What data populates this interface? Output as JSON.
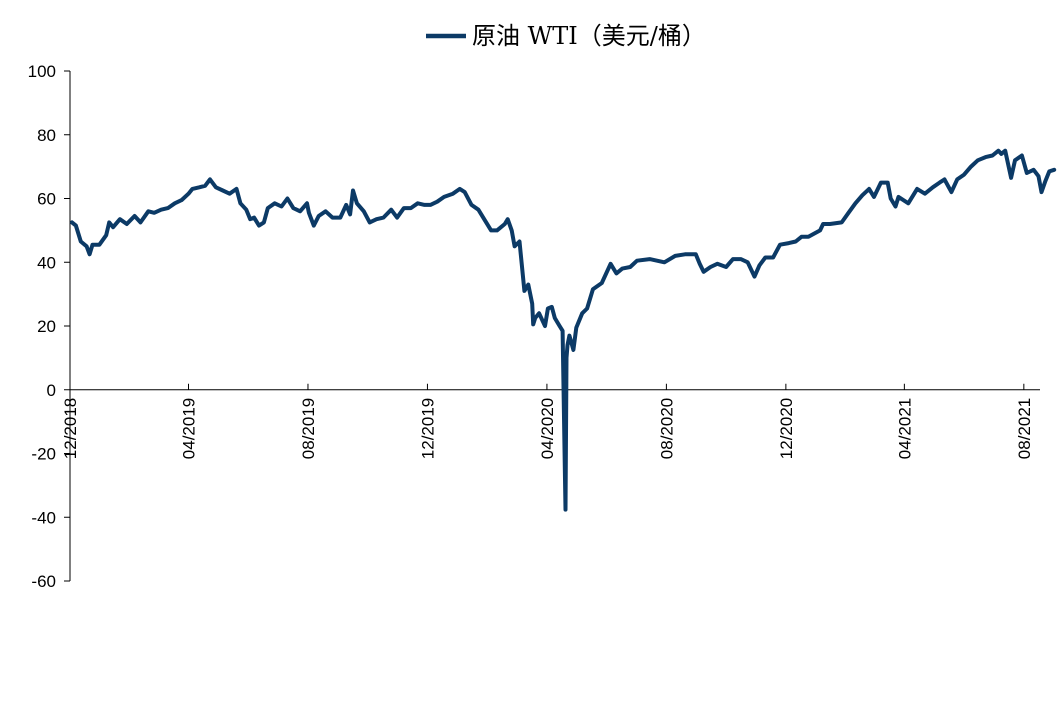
{
  "chart_data": {
    "type": "line",
    "title": "",
    "xlabel": "",
    "ylabel": "",
    "ylim": [
      -60,
      100
    ],
    "yticks": [
      100,
      80,
      60,
      40,
      20,
      0,
      -20,
      -40,
      -60
    ],
    "xticks": [
      "12/2018",
      "04/2019",
      "08/2019",
      "12/2019",
      "04/2020",
      "08/2020",
      "12/2020",
      "04/2021",
      "08/2021"
    ],
    "grid": false,
    "legend_position": "top-center",
    "series": [
      {
        "name": "原油 WTI（美元/桶）",
        "color": "#0c3a66",
        "points": [
          [
            "2018-12-03",
            52.5
          ],
          [
            "2018-12-07",
            51.5
          ],
          [
            "2018-12-12",
            46.5
          ],
          [
            "2018-12-18",
            45.0
          ],
          [
            "2018-12-21",
            42.5
          ],
          [
            "2018-12-24",
            45.5
          ],
          [
            "2018-12-31",
            45.5
          ],
          [
            "2019-01-07",
            48.5
          ],
          [
            "2019-01-10",
            52.5
          ],
          [
            "2019-01-14",
            51.0
          ],
          [
            "2019-01-21",
            53.5
          ],
          [
            "2019-01-28",
            52.0
          ],
          [
            "2019-02-05",
            54.5
          ],
          [
            "2019-02-11",
            52.5
          ],
          [
            "2019-02-19",
            56.0
          ],
          [
            "2019-02-25",
            55.5
          ],
          [
            "2019-03-04",
            56.5
          ],
          [
            "2019-03-11",
            57.0
          ],
          [
            "2019-03-18",
            58.5
          ],
          [
            "2019-03-25",
            59.5
          ],
          [
            "2019-04-01",
            61.5
          ],
          [
            "2019-04-05",
            63.0
          ],
          [
            "2019-04-12",
            63.5
          ],
          [
            "2019-04-18",
            64.0
          ],
          [
            "2019-04-23",
            66.0
          ],
          [
            "2019-04-29",
            63.5
          ],
          [
            "2019-05-06",
            62.5
          ],
          [
            "2019-05-13",
            61.5
          ],
          [
            "2019-05-20",
            63.0
          ],
          [
            "2019-05-24",
            58.5
          ],
          [
            "2019-05-30",
            56.5
          ],
          [
            "2019-06-03",
            53.5
          ],
          [
            "2019-06-07",
            54.0
          ],
          [
            "2019-06-12",
            51.5
          ],
          [
            "2019-06-17",
            52.5
          ],
          [
            "2019-06-21",
            57.0
          ],
          [
            "2019-06-28",
            58.5
          ],
          [
            "2019-07-05",
            57.5
          ],
          [
            "2019-07-11",
            60.0
          ],
          [
            "2019-07-17",
            57.0
          ],
          [
            "2019-07-24",
            56.0
          ],
          [
            "2019-07-31",
            58.5
          ],
          [
            "2019-08-02",
            55.5
          ],
          [
            "2019-08-07",
            51.5
          ],
          [
            "2019-08-12",
            54.5
          ],
          [
            "2019-08-19",
            56.0
          ],
          [
            "2019-08-26",
            54.0
          ],
          [
            "2019-09-03",
            54.0
          ],
          [
            "2019-09-09",
            58.0
          ],
          [
            "2019-09-13",
            55.0
          ],
          [
            "2019-09-16",
            62.5
          ],
          [
            "2019-09-20",
            58.5
          ],
          [
            "2019-09-27",
            56.0
          ],
          [
            "2019-10-03",
            52.5
          ],
          [
            "2019-10-10",
            53.5
          ],
          [
            "2019-10-17",
            54.0
          ],
          [
            "2019-10-25",
            56.5
          ],
          [
            "2019-10-31",
            54.0
          ],
          [
            "2019-11-07",
            57.0
          ],
          [
            "2019-11-14",
            57.0
          ],
          [
            "2019-11-21",
            58.5
          ],
          [
            "2019-11-28",
            58.0
          ],
          [
            "2019-12-04",
            58.0
          ],
          [
            "2019-12-11",
            59.0
          ],
          [
            "2019-12-18",
            60.5
          ],
          [
            "2019-12-27",
            61.5
          ],
          [
            "2020-01-03",
            63.0
          ],
          [
            "2020-01-08",
            62.0
          ],
          [
            "2020-01-15",
            58.0
          ],
          [
            "2020-01-22",
            56.5
          ],
          [
            "2020-01-29",
            53.0
          ],
          [
            "2020-02-04",
            50.0
          ],
          [
            "2020-02-10",
            50.0
          ],
          [
            "2020-02-18",
            52.0
          ],
          [
            "2020-02-21",
            53.5
          ],
          [
            "2020-02-25",
            50.0
          ],
          [
            "2020-02-28",
            45.0
          ],
          [
            "2020-03-04",
            46.5
          ],
          [
            "2020-03-09",
            31.0
          ],
          [
            "2020-03-13",
            33.0
          ],
          [
            "2020-03-17",
            27.0
          ],
          [
            "2020-03-18",
            20.5
          ],
          [
            "2020-03-20",
            22.5
          ],
          [
            "2020-03-24",
            24.0
          ],
          [
            "2020-03-30",
            20.0
          ],
          [
            "2020-04-02",
            25.5
          ],
          [
            "2020-04-06",
            26.0
          ],
          [
            "2020-04-09",
            22.5
          ],
          [
            "2020-04-14",
            20.0
          ],
          [
            "2020-04-17",
            18.5
          ],
          [
            "2020-04-20",
            -37.6
          ],
          [
            "2020-04-21",
            10.0
          ],
          [
            "2020-04-22",
            14.0
          ],
          [
            "2020-04-24",
            17.0
          ],
          [
            "2020-04-28",
            12.5
          ],
          [
            "2020-05-01",
            19.5
          ],
          [
            "2020-05-07",
            24.0
          ],
          [
            "2020-05-12",
            25.5
          ],
          [
            "2020-05-18",
            31.5
          ],
          [
            "2020-05-27",
            33.5
          ],
          [
            "2020-06-05",
            39.5
          ],
          [
            "2020-06-11",
            36.5
          ],
          [
            "2020-06-17",
            38.0
          ],
          [
            "2020-06-25",
            38.5
          ],
          [
            "2020-07-02",
            40.5
          ],
          [
            "2020-07-15",
            41.0
          ],
          [
            "2020-07-30",
            40.0
          ],
          [
            "2020-08-10",
            42.0
          ],
          [
            "2020-08-20",
            42.5
          ],
          [
            "2020-08-31",
            42.5
          ],
          [
            "2020-09-04",
            39.5
          ],
          [
            "2020-09-08",
            37.0
          ],
          [
            "2020-09-15",
            38.5
          ],
          [
            "2020-09-22",
            39.5
          ],
          [
            "2020-10-01",
            38.5
          ],
          [
            "2020-10-08",
            41.0
          ],
          [
            "2020-10-16",
            41.0
          ],
          [
            "2020-10-23",
            40.0
          ],
          [
            "2020-10-30",
            35.5
          ],
          [
            "2020-11-04",
            39.0
          ],
          [
            "2020-11-10",
            41.5
          ],
          [
            "2020-11-18",
            41.5
          ],
          [
            "2020-11-25",
            45.5
          ],
          [
            "2020-12-04",
            46.0
          ],
          [
            "2020-12-11",
            46.5
          ],
          [
            "2020-12-17",
            48.0
          ],
          [
            "2020-12-24",
            48.0
          ],
          [
            "2021-01-05",
            50.0
          ],
          [
            "2021-01-08",
            52.0
          ],
          [
            "2021-01-15",
            52.0
          ],
          [
            "2021-01-27",
            52.5
          ],
          [
            "2021-02-03",
            55.5
          ],
          [
            "2021-02-10",
            58.5
          ],
          [
            "2021-02-17",
            61.0
          ],
          [
            "2021-02-24",
            63.0
          ],
          [
            "2021-03-01",
            60.5
          ],
          [
            "2021-03-08",
            65.0
          ],
          [
            "2021-03-15",
            65.0
          ],
          [
            "2021-03-18",
            60.0
          ],
          [
            "2021-03-23",
            57.5
          ],
          [
            "2021-03-26",
            60.5
          ],
          [
            "2021-04-05",
            58.5
          ],
          [
            "2021-04-14",
            63.0
          ],
          [
            "2021-04-22",
            61.5
          ],
          [
            "2021-04-30",
            63.5
          ],
          [
            "2021-05-07",
            65.0
          ],
          [
            "2021-05-12",
            66.0
          ],
          [
            "2021-05-19",
            62.0
          ],
          [
            "2021-05-25",
            66.0
          ],
          [
            "2021-06-01",
            67.5
          ],
          [
            "2021-06-08",
            70.0
          ],
          [
            "2021-06-15",
            72.0
          ],
          [
            "2021-06-23",
            73.0
          ],
          [
            "2021-06-30",
            73.5
          ],
          [
            "2021-07-06",
            75.0
          ],
          [
            "2021-07-09",
            74.0
          ],
          [
            "2021-07-13",
            75.0
          ],
          [
            "2021-07-19",
            66.5
          ],
          [
            "2021-07-23",
            72.0
          ],
          [
            "2021-07-30",
            73.5
          ],
          [
            "2021-08-04",
            68.0
          ],
          [
            "2021-08-11",
            69.0
          ],
          [
            "2021-08-16",
            67.0
          ],
          [
            "2021-08-19",
            62.0
          ],
          [
            "2021-08-23",
            65.5
          ],
          [
            "2021-08-27",
            68.5
          ],
          [
            "2021-09-01",
            69.0
          ]
        ]
      }
    ]
  }
}
